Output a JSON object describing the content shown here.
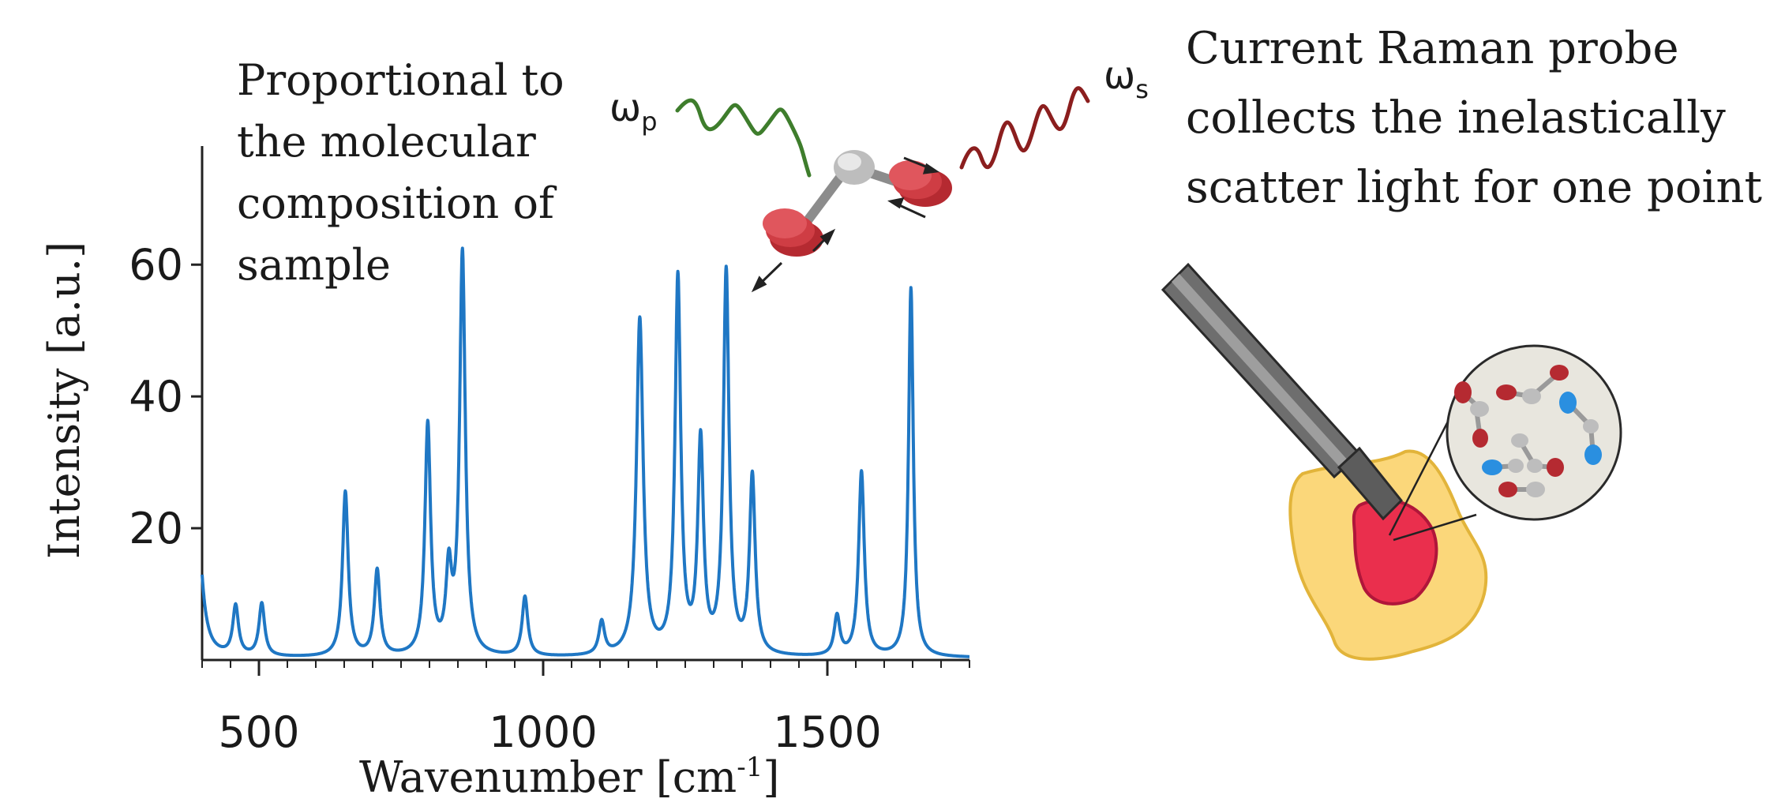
{
  "annotation_left": [
    "Proportional to",
    "the molecular",
    "composition of",
    "sample"
  ],
  "annotation_right": [
    "Current Raman probe",
    "collects the inelastically",
    "scatter light for one point"
  ],
  "omega_p": "ωp",
  "omega_s": "ωs",
  "colors": {
    "spectrum": "#1f77c4",
    "pump_wave": "#3e7d2c",
    "stokes_wave": "#8b1e1e",
    "atom_red": "#c1272d",
    "atom_gray": "#bdbdbd",
    "atom_blue": "#2a8fe0",
    "tissue": "#fbd77a",
    "tissue_edge": "#e2b43a",
    "lesion": "#ea2f4d",
    "probe": "#6e6e6e"
  },
  "chart_data": {
    "type": "line",
    "xlabel": "Wavenumber [cm-1]",
    "ylabel": "Intensity [a.u.]",
    "xlim": [
      400,
      1750
    ],
    "ylim": [
      0,
      78
    ],
    "x_ticks": [
      500,
      1000,
      1500
    ],
    "y_ticks": [
      20,
      40,
      60
    ],
    "baseline": 0.3,
    "peaks": [
      {
        "x": 390,
        "y": 25,
        "w": 10
      },
      {
        "x": 459,
        "y": 7.5,
        "w": 6
      },
      {
        "x": 505,
        "y": 8.0,
        "w": 6
      },
      {
        "x": 652,
        "y": 25,
        "w": 6
      },
      {
        "x": 708,
        "y": 13,
        "w": 6
      },
      {
        "x": 797,
        "y": 35,
        "w": 6
      },
      {
        "x": 834,
        "y": 12,
        "w": 6
      },
      {
        "x": 858,
        "y": 61,
        "w": 6
      },
      {
        "x": 968,
        "y": 9,
        "w": 6
      },
      {
        "x": 1103,
        "y": 5,
        "w": 6
      },
      {
        "x": 1170,
        "y": 51,
        "w": 7
      },
      {
        "x": 1237,
        "y": 57,
        "w": 6
      },
      {
        "x": 1277,
        "y": 32,
        "w": 6
      },
      {
        "x": 1322,
        "y": 58,
        "w": 6
      },
      {
        "x": 1368,
        "y": 27,
        "w": 6
      },
      {
        "x": 1517,
        "y": 6,
        "w": 6
      },
      {
        "x": 1560,
        "y": 28,
        "w": 6
      },
      {
        "x": 1647,
        "y": 56,
        "w": 5
      }
    ]
  }
}
